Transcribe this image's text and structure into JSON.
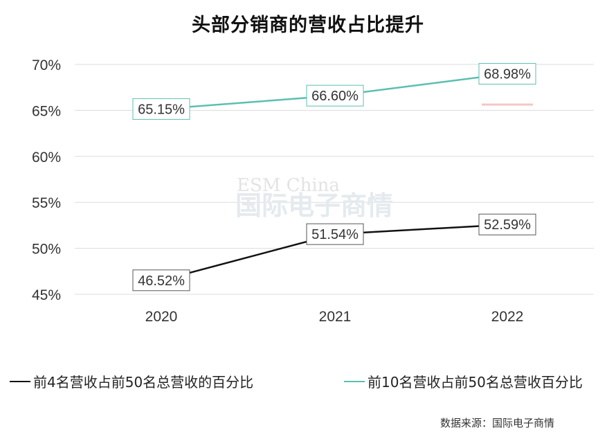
{
  "title": "头部分销商的营收占比提升",
  "watermark": {
    "en": "ESM China",
    "cn": "国际电子商情"
  },
  "source": "数据来源：国际电子商情",
  "chart_data": {
    "type": "line",
    "title": "头部分销商的营收占比提升",
    "categories": [
      "2020",
      "2021",
      "2022"
    ],
    "ylim": [
      45,
      70
    ],
    "yticks": [
      45,
      50,
      55,
      60,
      65,
      70
    ],
    "ytick_labels": [
      "45%",
      "50%",
      "55%",
      "60%",
      "65%",
      "70%"
    ],
    "grid": true,
    "legend_position": "bottom",
    "series": [
      {
        "name": "前4名营收占前50名总营收的百分比",
        "values": [
          46.52,
          51.54,
          52.59
        ],
        "labels": [
          "46.52%",
          "51.54%",
          "52.59%"
        ],
        "color": "#111111"
      },
      {
        "name": "前10名营收占前50名总营收百分比",
        "values": [
          65.15,
          66.6,
          68.98
        ],
        "labels": [
          "65.15%",
          "66.60%",
          "68.98%"
        ],
        "color": "#5bbfb0"
      }
    ]
  }
}
